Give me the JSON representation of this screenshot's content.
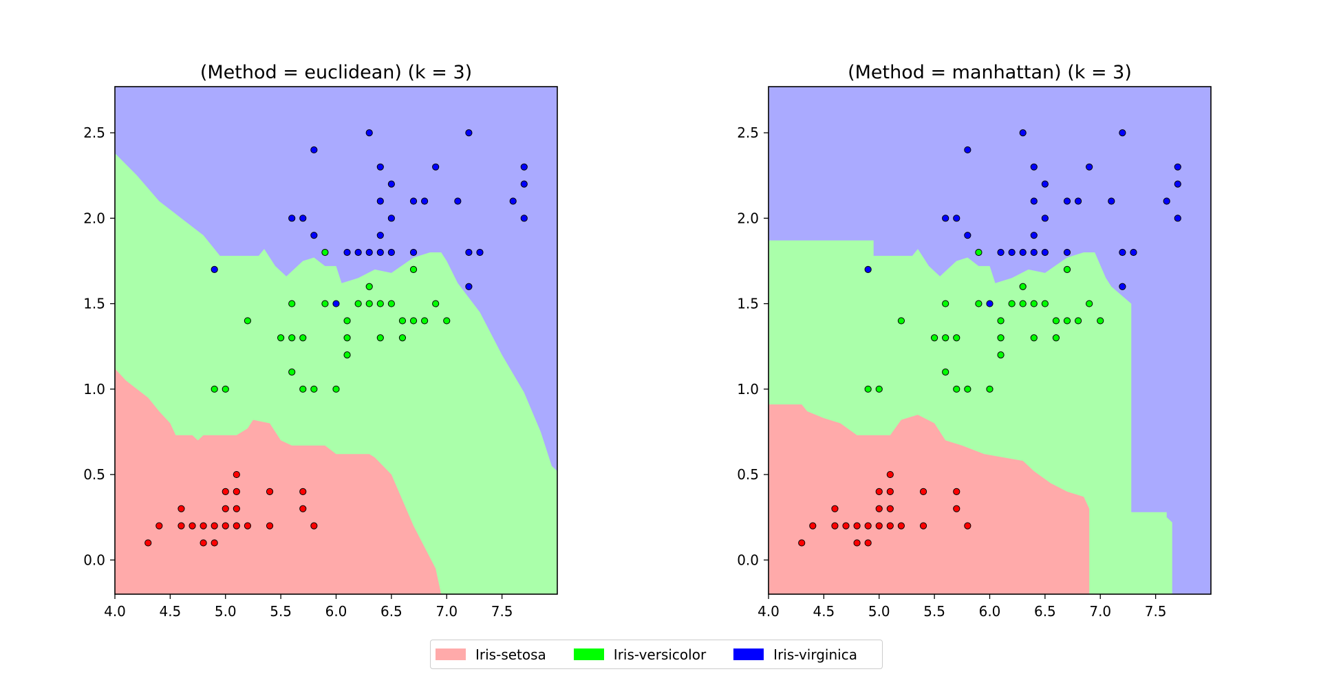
{
  "colors": {
    "region_setosa": "#ffaaaa",
    "region_versicolor": "#aaffaa",
    "region_virginica": "#aaaaff",
    "point_setosa": "#ff0000",
    "point_versicolor": "#00ff00",
    "point_virginica": "#0000ff"
  },
  "legend": {
    "items": [
      {
        "label": "Iris-setosa",
        "color": "#ffaaaa"
      },
      {
        "label": "Iris-versicolor",
        "color": "#00ff00"
      },
      {
        "label": "Iris-virginica",
        "color": "#0000ff"
      }
    ]
  },
  "chart_data": [
    {
      "type": "scatter",
      "title": "(Method = euclidean) (k = 3)",
      "xlabel": "",
      "ylabel": "",
      "xlim": [
        4.0,
        8.0
      ],
      "ylim": [
        -0.2,
        2.77
      ],
      "xticks": [
        "4.0",
        "4.5",
        "5.0",
        "5.5",
        "6.0",
        "6.5",
        "7.0",
        "7.5"
      ],
      "yticks": [
        "0.0",
        "0.5",
        "1.0",
        "1.5",
        "2.0",
        "2.5"
      ],
      "grid": false,
      "background": "decision regions (k-NN classification map)",
      "boundaries": {
        "setosa_top": [
          [
            4.0,
            1.12
          ],
          [
            4.1,
            1.05
          ],
          [
            4.2,
            1.0
          ],
          [
            4.3,
            0.95
          ],
          [
            4.4,
            0.87
          ],
          [
            4.5,
            0.8
          ],
          [
            4.55,
            0.73
          ],
          [
            4.7,
            0.73
          ],
          [
            4.75,
            0.7
          ],
          [
            4.8,
            0.73
          ],
          [
            5.1,
            0.73
          ],
          [
            5.2,
            0.77
          ],
          [
            5.25,
            0.82
          ],
          [
            5.4,
            0.8
          ],
          [
            5.5,
            0.7
          ],
          [
            5.6,
            0.67
          ],
          [
            5.7,
            0.67
          ],
          [
            5.9,
            0.67
          ],
          [
            6.0,
            0.62
          ],
          [
            6.3,
            0.62
          ],
          [
            6.35,
            0.6
          ],
          [
            6.5,
            0.5
          ],
          [
            6.7,
            0.2
          ],
          [
            6.9,
            -0.05
          ],
          [
            6.95,
            -0.2
          ]
        ],
        "virginica_bottom": [
          [
            4.0,
            2.38
          ],
          [
            4.2,
            2.25
          ],
          [
            4.4,
            2.1
          ],
          [
            4.6,
            2.0
          ],
          [
            4.8,
            1.9
          ],
          [
            4.9,
            1.82
          ],
          [
            4.95,
            1.78
          ],
          [
            5.3,
            1.78
          ],
          [
            5.35,
            1.82
          ],
          [
            5.45,
            1.72
          ],
          [
            5.55,
            1.66
          ],
          [
            5.7,
            1.75
          ],
          [
            5.8,
            1.77
          ],
          [
            5.9,
            1.72
          ],
          [
            6.0,
            1.72
          ],
          [
            6.05,
            1.62
          ],
          [
            6.2,
            1.65
          ],
          [
            6.35,
            1.7
          ],
          [
            6.5,
            1.68
          ],
          [
            6.7,
            1.77
          ],
          [
            6.85,
            1.8
          ],
          [
            6.95,
            1.8
          ],
          [
            7.0,
            1.75
          ],
          [
            7.1,
            1.62
          ],
          [
            7.3,
            1.45
          ],
          [
            7.5,
            1.2
          ],
          [
            7.7,
            0.98
          ],
          [
            7.85,
            0.75
          ],
          [
            7.95,
            0.55
          ],
          [
            8.0,
            0.52
          ]
        ]
      },
      "series": [
        {
          "name": "Iris-setosa",
          "color": "#ff0000",
          "points": [
            [
              4.3,
              0.1
            ],
            [
              4.4,
              0.2
            ],
            [
              4.6,
              0.2
            ],
            [
              4.6,
              0.3
            ],
            [
              4.7,
              0.2
            ],
            [
              4.8,
              0.2
            ],
            [
              4.8,
              0.1
            ],
            [
              4.9,
              0.2
            ],
            [
              4.9,
              0.1
            ],
            [
              5.0,
              0.2
            ],
            [
              5.0,
              0.4
            ],
            [
              5.0,
              0.3
            ],
            [
              5.1,
              0.2
            ],
            [
              5.1,
              0.3
            ],
            [
              5.1,
              0.4
            ],
            [
              5.1,
              0.5
            ],
            [
              5.2,
              0.2
            ],
            [
              5.4,
              0.2
            ],
            [
              5.4,
              0.4
            ],
            [
              5.7,
              0.4
            ],
            [
              5.7,
              0.3
            ],
            [
              5.8,
              0.2
            ]
          ]
        },
        {
          "name": "Iris-versicolor",
          "color": "#00ff00",
          "points": [
            [
              4.9,
              1.0
            ],
            [
              5.0,
              1.0
            ],
            [
              5.2,
              1.4
            ],
            [
              5.5,
              1.3
            ],
            [
              5.6,
              1.3
            ],
            [
              5.6,
              1.5
            ],
            [
              5.6,
              1.1
            ],
            [
              5.7,
              1.3
            ],
            [
              5.7,
              1.0
            ],
            [
              5.8,
              1.0
            ],
            [
              5.9,
              1.5
            ],
            [
              5.9,
              1.8
            ],
            [
              6.0,
              1.0
            ],
            [
              6.1,
              1.2
            ],
            [
              6.1,
              1.3
            ],
            [
              6.1,
              1.4
            ],
            [
              6.2,
              1.5
            ],
            [
              6.3,
              1.5
            ],
            [
              6.3,
              1.6
            ],
            [
              6.4,
              1.3
            ],
            [
              6.4,
              1.5
            ],
            [
              6.5,
              1.5
            ],
            [
              6.6,
              1.3
            ],
            [
              6.6,
              1.4
            ],
            [
              6.7,
              1.4
            ],
            [
              6.7,
              1.7
            ],
            [
              6.8,
              1.4
            ],
            [
              6.9,
              1.5
            ],
            [
              7.0,
              1.4
            ]
          ]
        },
        {
          "name": "Iris-virginica",
          "color": "#0000ff",
          "points": [
            [
              4.9,
              1.7
            ],
            [
              5.6,
              2.0
            ],
            [
              5.7,
              2.0
            ],
            [
              5.8,
              2.4
            ],
            [
              5.8,
              1.9
            ],
            [
              6.0,
              1.5
            ],
            [
              6.1,
              1.8
            ],
            [
              6.2,
              1.8
            ],
            [
              6.3,
              1.8
            ],
            [
              6.3,
              2.5
            ],
            [
              6.4,
              2.3
            ],
            [
              6.4,
              2.1
            ],
            [
              6.4,
              1.9
            ],
            [
              6.4,
              1.8
            ],
            [
              6.5,
              2.2
            ],
            [
              6.5,
              2.0
            ],
            [
              6.5,
              1.8
            ],
            [
              6.7,
              2.1
            ],
            [
              6.7,
              1.8
            ],
            [
              6.8,
              2.1
            ],
            [
              6.9,
              2.3
            ],
            [
              7.1,
              2.1
            ],
            [
              7.2,
              2.5
            ],
            [
              7.2,
              1.8
            ],
            [
              7.2,
              1.6
            ],
            [
              7.3,
              1.8
            ],
            [
              7.6,
              2.1
            ],
            [
              7.7,
              2.3
            ],
            [
              7.7,
              2.2
            ],
            [
              7.7,
              2.0
            ]
          ]
        }
      ]
    },
    {
      "type": "scatter",
      "title": "(Method = manhattan) (k = 3)",
      "xlabel": "",
      "ylabel": "",
      "xlim": [
        4.0,
        8.0
      ],
      "ylim": [
        -0.2,
        2.77
      ],
      "xticks": [
        "4.0",
        "4.5",
        "5.0",
        "5.5",
        "6.0",
        "6.5",
        "7.0",
        "7.5"
      ],
      "yticks": [
        "0.0",
        "0.5",
        "1.0",
        "1.5",
        "2.0",
        "2.5"
      ],
      "grid": false,
      "background": "decision regions (k-NN classification map)",
      "boundaries": {
        "setosa_top": [
          [
            4.0,
            0.91
          ],
          [
            4.3,
            0.91
          ],
          [
            4.35,
            0.87
          ],
          [
            4.5,
            0.83
          ],
          [
            4.65,
            0.8
          ],
          [
            4.8,
            0.73
          ],
          [
            5.1,
            0.73
          ],
          [
            5.2,
            0.82
          ],
          [
            5.35,
            0.85
          ],
          [
            5.5,
            0.8
          ],
          [
            5.6,
            0.7
          ],
          [
            5.75,
            0.67
          ],
          [
            5.95,
            0.62
          ],
          [
            6.3,
            0.58
          ],
          [
            6.4,
            0.52
          ],
          [
            6.55,
            0.45
          ],
          [
            6.7,
            0.4
          ],
          [
            6.85,
            0.37
          ],
          [
            6.9,
            0.3
          ],
          [
            6.9,
            -0.2
          ]
        ],
        "virginica_bottom": [
          [
            4.0,
            1.87
          ],
          [
            4.95,
            1.87
          ],
          [
            4.95,
            1.78
          ],
          [
            5.3,
            1.78
          ],
          [
            5.35,
            1.82
          ],
          [
            5.45,
            1.72
          ],
          [
            5.55,
            1.66
          ],
          [
            5.7,
            1.75
          ],
          [
            5.8,
            1.77
          ],
          [
            5.9,
            1.72
          ],
          [
            6.0,
            1.72
          ],
          [
            6.05,
            1.62
          ],
          [
            6.2,
            1.65
          ],
          [
            6.35,
            1.7
          ],
          [
            6.5,
            1.68
          ],
          [
            6.7,
            1.77
          ],
          [
            6.85,
            1.8
          ],
          [
            6.95,
            1.8
          ],
          [
            7.05,
            1.65
          ],
          [
            7.1,
            1.6
          ],
          [
            7.28,
            1.5
          ],
          [
            7.28,
            0.28
          ],
          [
            7.6,
            0.28
          ],
          [
            7.6,
            0.25
          ],
          [
            7.65,
            0.22
          ],
          [
            7.65,
            -0.2
          ]
        ]
      },
      "series": [
        {
          "name": "Iris-setosa",
          "color": "#ff0000",
          "points": [
            [
              4.3,
              0.1
            ],
            [
              4.4,
              0.2
            ],
            [
              4.6,
              0.2
            ],
            [
              4.6,
              0.3
            ],
            [
              4.7,
              0.2
            ],
            [
              4.8,
              0.2
            ],
            [
              4.8,
              0.1
            ],
            [
              4.9,
              0.2
            ],
            [
              4.9,
              0.1
            ],
            [
              5.0,
              0.2
            ],
            [
              5.0,
              0.4
            ],
            [
              5.0,
              0.3
            ],
            [
              5.1,
              0.2
            ],
            [
              5.1,
              0.3
            ],
            [
              5.1,
              0.4
            ],
            [
              5.1,
              0.5
            ],
            [
              5.2,
              0.2
            ],
            [
              5.4,
              0.2
            ],
            [
              5.4,
              0.4
            ],
            [
              5.7,
              0.4
            ],
            [
              5.7,
              0.3
            ],
            [
              5.8,
              0.2
            ]
          ]
        },
        {
          "name": "Iris-versicolor",
          "color": "#00ff00",
          "points": [
            [
              4.9,
              1.0
            ],
            [
              5.0,
              1.0
            ],
            [
              5.2,
              1.4
            ],
            [
              5.5,
              1.3
            ],
            [
              5.6,
              1.3
            ],
            [
              5.6,
              1.5
            ],
            [
              5.6,
              1.1
            ],
            [
              5.7,
              1.3
            ],
            [
              5.7,
              1.0
            ],
            [
              5.8,
              1.0
            ],
            [
              5.9,
              1.5
            ],
            [
              5.9,
              1.8
            ],
            [
              6.0,
              1.0
            ],
            [
              6.1,
              1.2
            ],
            [
              6.1,
              1.3
            ],
            [
              6.1,
              1.4
            ],
            [
              6.2,
              1.5
            ],
            [
              6.3,
              1.5
            ],
            [
              6.3,
              1.6
            ],
            [
              6.4,
              1.3
            ],
            [
              6.4,
              1.5
            ],
            [
              6.5,
              1.5
            ],
            [
              6.6,
              1.3
            ],
            [
              6.6,
              1.4
            ],
            [
              6.7,
              1.4
            ],
            [
              6.7,
              1.7
            ],
            [
              6.8,
              1.4
            ],
            [
              6.9,
              1.5
            ],
            [
              7.0,
              1.4
            ]
          ]
        },
        {
          "name": "Iris-virginica",
          "color": "#0000ff",
          "points": [
            [
              4.9,
              1.7
            ],
            [
              5.6,
              2.0
            ],
            [
              5.7,
              2.0
            ],
            [
              5.8,
              2.4
            ],
            [
              5.8,
              1.9
            ],
            [
              6.0,
              1.5
            ],
            [
              6.1,
              1.8
            ],
            [
              6.2,
              1.8
            ],
            [
              6.3,
              1.8
            ],
            [
              6.3,
              2.5
            ],
            [
              6.4,
              2.3
            ],
            [
              6.4,
              2.1
            ],
            [
              6.4,
              1.9
            ],
            [
              6.4,
              1.8
            ],
            [
              6.5,
              2.2
            ],
            [
              6.5,
              2.0
            ],
            [
              6.5,
              1.8
            ],
            [
              6.7,
              2.1
            ],
            [
              6.7,
              1.8
            ],
            [
              6.8,
              2.1
            ],
            [
              6.9,
              2.3
            ],
            [
              7.1,
              2.1
            ],
            [
              7.2,
              2.5
            ],
            [
              7.2,
              1.8
            ],
            [
              7.2,
              1.6
            ],
            [
              7.3,
              1.8
            ],
            [
              7.6,
              2.1
            ],
            [
              7.7,
              2.3
            ],
            [
              7.7,
              2.2
            ],
            [
              7.7,
              2.0
            ]
          ]
        }
      ]
    }
  ]
}
